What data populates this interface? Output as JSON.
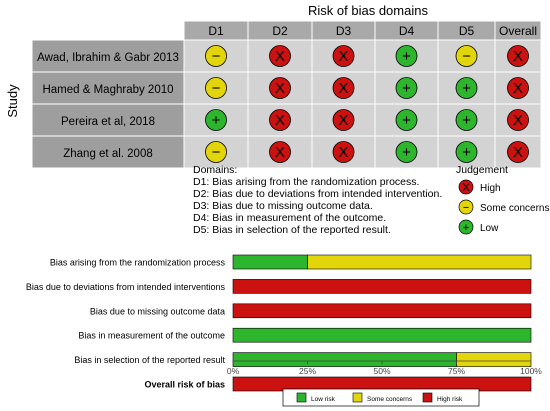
{
  "traffic_light": {
    "title": "Risk of bias domains",
    "y_axis_label": "Study",
    "columns": [
      "D1",
      "D2",
      "D3",
      "D4",
      "D5",
      "Overall"
    ],
    "studies": [
      {
        "name": "Awad, Ibrahim & Gabr 2013",
        "judgements": [
          "some",
          "high",
          "high",
          "low",
          "some",
          "high"
        ]
      },
      {
        "name": "Hamed & Maghraby 2010",
        "judgements": [
          "some",
          "high",
          "high",
          "low",
          "low",
          "high"
        ]
      },
      {
        "name": "Pereira et al, 2018",
        "judgements": [
          "low",
          "high",
          "high",
          "low",
          "low",
          "high"
        ]
      },
      {
        "name": "Zhang et al. 2008",
        "judgements": [
          "some",
          "high",
          "high",
          "low",
          "low",
          "high"
        ]
      }
    ],
    "symbols": {
      "high": "X",
      "some": "−",
      "low": "+"
    },
    "domains_heading": "Domains:",
    "domains": [
      "D1: Bias arising from the randomization process.",
      "D2: Bias due to deviations from intended intervention.",
      "D3: Bias due to missing outcome data.",
      "D4: Bias in measurement of the outcome.",
      "D5: Bias in selection of the reported result."
    ],
    "judgement_legend": {
      "title": "Judgement",
      "items": [
        {
          "key": "high",
          "label": "High"
        },
        {
          "key": "some",
          "label": "Some concerns"
        },
        {
          "key": "low",
          "label": "Low"
        }
      ]
    }
  },
  "chart_data": {
    "type": "bar",
    "orientation": "horizontal",
    "stacked": true,
    "categories": [
      "Bias arising from the randomization process",
      "Bias due to deviations from intended interventions",
      "Bias due to missing outcome data",
      "Bias in measurement of the outcome",
      "Bias in selection of the reported result",
      "Overall risk of bias"
    ],
    "bold_category": "Overall risk of bias",
    "series": [
      {
        "name": "Low risk",
        "key": "low",
        "values": [
          25,
          0,
          0,
          100,
          75,
          0
        ]
      },
      {
        "name": "Some concerns",
        "key": "some",
        "values": [
          75,
          0,
          0,
          0,
          25,
          0
        ]
      },
      {
        "name": "High risk",
        "key": "high",
        "values": [
          0,
          100,
          100,
          0,
          0,
          100
        ]
      }
    ],
    "xlim": [
      0,
      100
    ],
    "xticks": [
      "0%",
      "25%",
      "50%",
      "75%",
      "100%"
    ],
    "legend_position": "bottom"
  },
  "colors": {
    "low": "#2db52d",
    "some": "#e3d50c",
    "high": "#cc1111",
    "cell_bg": "#d3d3d3",
    "header_bg": "#a9a9a9",
    "study_bg": "#9e9e9e",
    "grid_line": "#ffffff"
  }
}
